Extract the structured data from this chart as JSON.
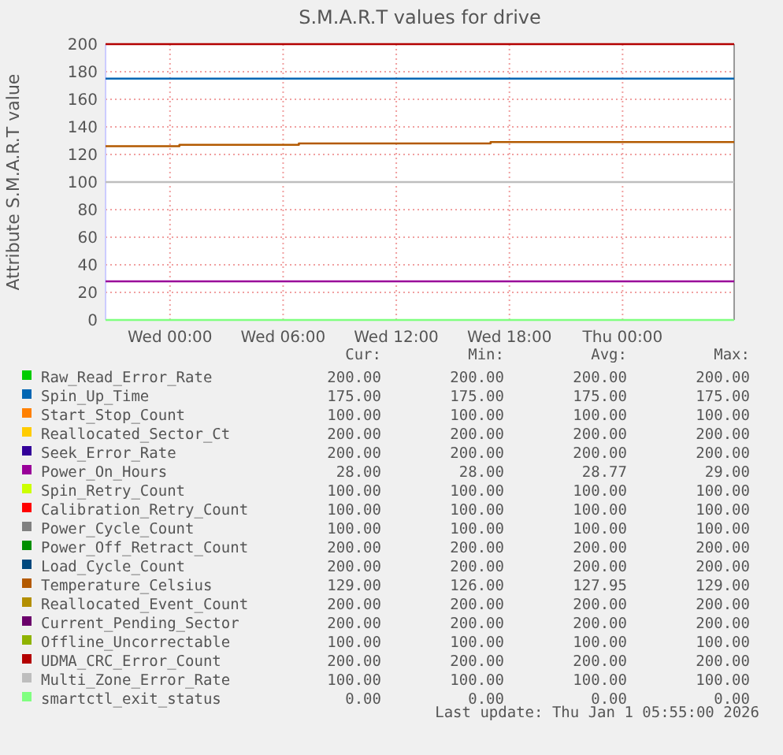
{
  "chart_data": {
    "type": "step",
    "title": "S.M.A.R.T values for drive",
    "ylabel": "Attribute S.M.A.R.T value",
    "xlim": [
      "2025-12-30T20:35",
      "2026-01-01T05:55"
    ],
    "xticks": [
      {
        "value": "2025-12-31T00:00",
        "label": "Wed 00:00"
      },
      {
        "value": "2025-12-31T06:00",
        "label": "Wed 06:00"
      },
      {
        "value": "2025-12-31T12:00",
        "label": "Wed 12:00"
      },
      {
        "value": "2025-12-31T18:00",
        "label": "Wed 18:00"
      },
      {
        "value": "2026-01-01T00:00",
        "label": "Thu 00:00"
      }
    ],
    "ylim": [
      0,
      200
    ],
    "yticks": [
      0,
      20,
      40,
      60,
      80,
      100,
      120,
      140,
      160,
      180,
      200
    ],
    "grid": true,
    "legend": "bottom",
    "marker": "none",
    "line_style": "solid",
    "series": [
      {
        "name": "Raw_Read_Error_Rate",
        "color": "#00cc00",
        "values": [
          null
        ]
      },
      {
        "name": "Spin_Up_Time",
        "color": "#0066b3",
        "x": [
          "2025-12-30T20:35",
          "2026-01-01T05:55"
        ],
        "values": [
          175,
          175
        ]
      },
      {
        "name": "Start_Stop_Count",
        "color": "#ff8000",
        "values": [
          null
        ]
      },
      {
        "name": "Reallocated_Sector_Ct",
        "color": "#ffcc00",
        "values": [
          null
        ]
      },
      {
        "name": "Seek_Error_Rate",
        "color": "#330099",
        "values": [
          null
        ]
      },
      {
        "name": "Power_On_Hours",
        "color": "#990099",
        "x": [
          "2025-12-30T20:35",
          "2026-01-01T05:55"
        ],
        "values": [
          28,
          28
        ]
      },
      {
        "name": "Spin_Retry_Count",
        "color": "#ccff00",
        "values": [
          null
        ]
      },
      {
        "name": "Calibration_Retry_Count",
        "color": "#ff0000",
        "values": [
          null
        ]
      },
      {
        "name": "Power_Cycle_Count",
        "color": "#808080",
        "values": [
          null
        ]
      },
      {
        "name": "Power_Off_Retract_Count",
        "color": "#008f00",
        "values": [
          null
        ]
      },
      {
        "name": "Load_Cycle_Count",
        "color": "#00487d",
        "values": [
          null
        ]
      },
      {
        "name": "Temperature_Celsius",
        "color": "#b35a00",
        "x": [
          "2025-12-30T20:35",
          "2025-12-31T00:30",
          "2025-12-31T06:50",
          "2025-12-31T17:00",
          "2026-01-01T05:55"
        ],
        "values": [
          126,
          127,
          128,
          129,
          129
        ]
      },
      {
        "name": "Reallocated_Event_Count",
        "color": "#b38f00",
        "values": [
          null
        ]
      },
      {
        "name": "Current_Pending_Sector",
        "color": "#6b006b",
        "values": [
          null
        ]
      },
      {
        "name": "Offline_Uncorrectable",
        "color": "#8fb300",
        "values": [
          null
        ]
      },
      {
        "name": "UDMA_CRC_Error_Count",
        "color": "#b30000",
        "x": [
          "2025-12-30T20:35",
          "2026-01-01T05:55"
        ],
        "values": [
          200,
          200
        ]
      },
      {
        "name": "Multi_Zone_Error_Rate",
        "color": "#bebebe",
        "x": [
          "2025-12-30T20:35",
          "2026-01-01T05:55"
        ],
        "values": [
          100,
          100
        ]
      },
      {
        "name": "smartctl_exit_status",
        "color": "#80ff80",
        "x": [
          "2025-12-30T20:35",
          "2026-01-01T05:55"
        ],
        "values": [
          0,
          0
        ]
      }
    ],
    "annotations": [
      "Cur:",
      "Min:",
      "Avg:",
      "Max:",
      "200.00",
      "200.00",
      "200.00",
      "200.00",
      "175.00",
      "175.00",
      "175.00",
      "175.00",
      "100.00",
      "100.00",
      "100.00",
      "100.00",
      "200.00",
      "200.00",
      "200.00",
      "200.00",
      "200.00",
      "200.00",
      "200.00",
      "200.00",
      "28.00",
      "28.00",
      "28.77",
      "29.00",
      "100.00",
      "100.00",
      "100.00",
      "100.00",
      "100.00",
      "100.00",
      "100.00",
      "100.00",
      "100.00",
      "100.00",
      "100.00",
      "100.00",
      "200.00",
      "200.00",
      "200.00",
      "200.00",
      "200.00",
      "200.00",
      "200.00",
      "200.00",
      "129.00",
      "126.00",
      "127.95",
      "129.00",
      "200.00",
      "200.00",
      "200.00",
      "200.00",
      "200.00",
      "200.00",
      "200.00",
      "200.00",
      "100.00",
      "100.00",
      "100.00",
      "100.00",
      "200.00",
      "200.00",
      "200.00",
      "200.00",
      "100.00",
      "100.00",
      "100.00",
      "100.00",
      "0.00",
      "0.00",
      "0.00",
      "0.00",
      "Last update: Thu Jan  1 05:55:00 2026"
    ]
  }
}
